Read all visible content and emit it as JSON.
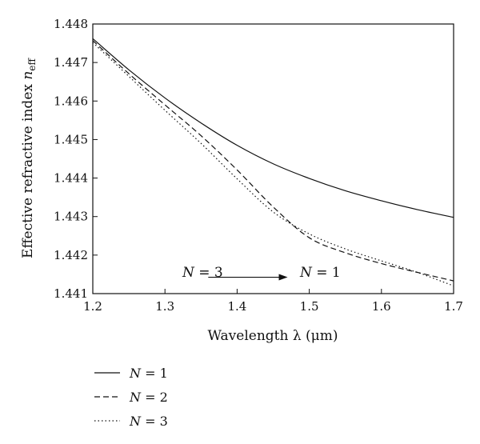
{
  "chart_data": {
    "type": "line",
    "title": "",
    "xlabel": "Wavelength λ (μm)",
    "ylabel_main": "Effective refractive index ",
    "ylabel_var": "n",
    "ylabel_sub": "eff",
    "xlim": [
      1.2,
      1.7
    ],
    "ylim": [
      1.441,
      1.448
    ],
    "xticks": [
      "1.2",
      "1.3",
      "1.4",
      "1.5",
      "1.6",
      "1.7"
    ],
    "yticks": [
      "1.441",
      "1.442",
      "1.443",
      "1.444",
      "1.445",
      "1.446",
      "1.447",
      "1.448"
    ],
    "grid": false,
    "legend_position": "bottom-left, below plot",
    "series": [
      {
        "name": "N = 1",
        "legend_var": "N",
        "legend_eq": " = 1",
        "style": "solid",
        "x": [
          1.2,
          1.25,
          1.3,
          1.35,
          1.4,
          1.45,
          1.5,
          1.55,
          1.6,
          1.65,
          1.7
        ],
        "y": [
          1.44762,
          1.44681,
          1.44608,
          1.44543,
          1.44485,
          1.44437,
          1.44399,
          1.44367,
          1.44341,
          1.44318,
          1.44298
        ]
      },
      {
        "name": "N = 2",
        "legend_var": "N",
        "legend_eq": " = 2",
        "style": "dashed",
        "x": [
          1.2,
          1.25,
          1.3,
          1.35,
          1.4,
          1.45,
          1.5,
          1.55,
          1.6,
          1.65,
          1.7
        ],
        "y": [
          1.44757,
          1.44671,
          1.4459,
          1.4451,
          1.44421,
          1.44325,
          1.44245,
          1.44206,
          1.44178,
          1.44155,
          1.44133
        ]
      },
      {
        "name": "N = 3",
        "legend_var": "N",
        "legend_eq": " = 3",
        "style": "dotted",
        "x": [
          1.2,
          1.25,
          1.3,
          1.35,
          1.4,
          1.45,
          1.5,
          1.55,
          1.6,
          1.65,
          1.7
        ],
        "y": [
          1.44752,
          1.44664,
          1.44576,
          1.4449,
          1.44398,
          1.44312,
          1.44255,
          1.44216,
          1.44185,
          1.44155,
          1.4412
        ]
      }
    ],
    "annotation": {
      "left_var": "N",
      "left_eq": " = 3",
      "right_var": "N",
      "right_eq": " = 1",
      "arrow_from_x": 1.36,
      "arrow_to_x": 1.47,
      "y": 1.4413
    }
  }
}
